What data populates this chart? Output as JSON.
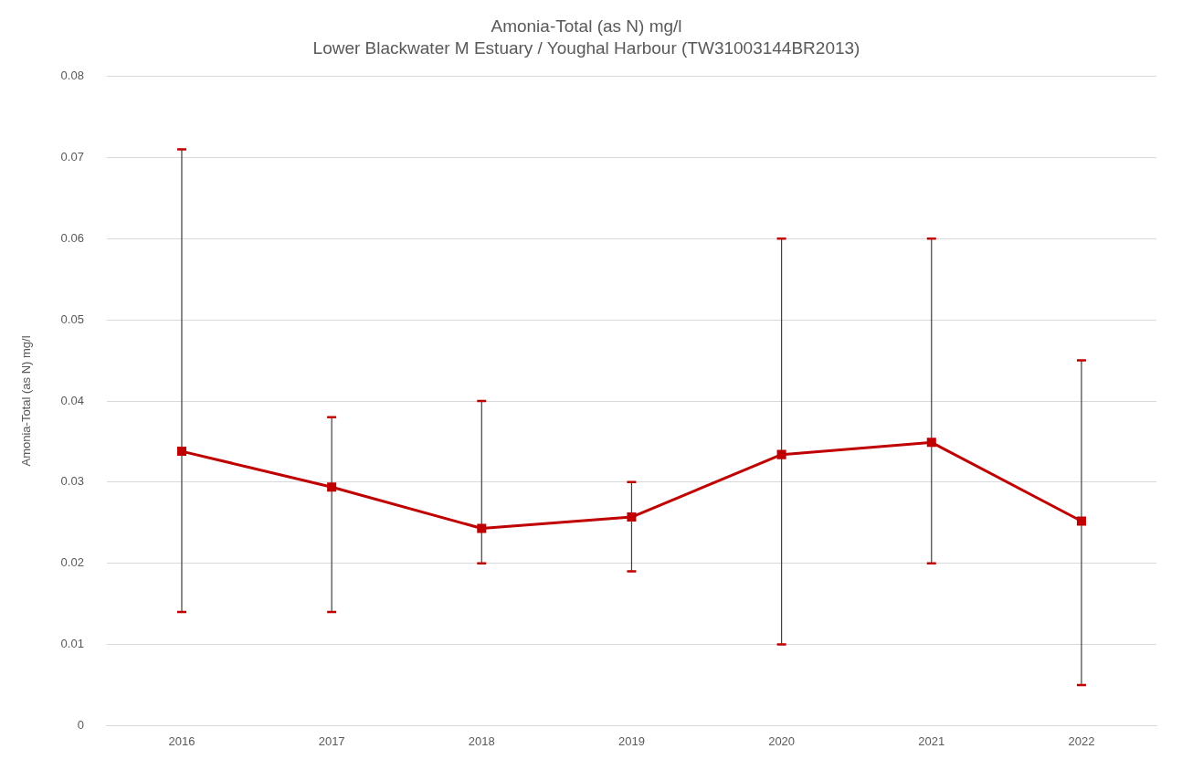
{
  "chart_data": {
    "type": "line",
    "title": "Amonia-Total (as N) mg/l",
    "subtitle": "Lower Blackwater M Estuary / Youghal Harbour (TW31003144BR2013)",
    "ylabel": "Amonia-Total (as N) mg/l",
    "categories": [
      "2016",
      "2017",
      "2018",
      "2019",
      "2020",
      "2021",
      "2022"
    ],
    "series": [
      {
        "color": "#c00000",
        "values": [
          0.0338,
          0.0294,
          0.0243,
          0.0257,
          0.0334,
          0.0349,
          0.0252
        ],
        "errors": [
          [
            0.014,
            0.071
          ],
          [
            0.014,
            0.038
          ],
          [
            0.02,
            0.04
          ],
          [
            0.019,
            0.03
          ],
          [
            0.01,
            0.06
          ],
          [
            0.02,
            0.06
          ],
          [
            0.005,
            0.045
          ]
        ]
      }
    ],
    "ylim": [
      0,
      0.08
    ],
    "yticks": [
      0,
      0.01,
      0.02,
      0.03,
      0.04,
      0.05,
      0.06,
      0.07,
      0.08
    ],
    "grid": "y",
    "legend": false,
    "marker": "square",
    "line_style": "solid"
  }
}
